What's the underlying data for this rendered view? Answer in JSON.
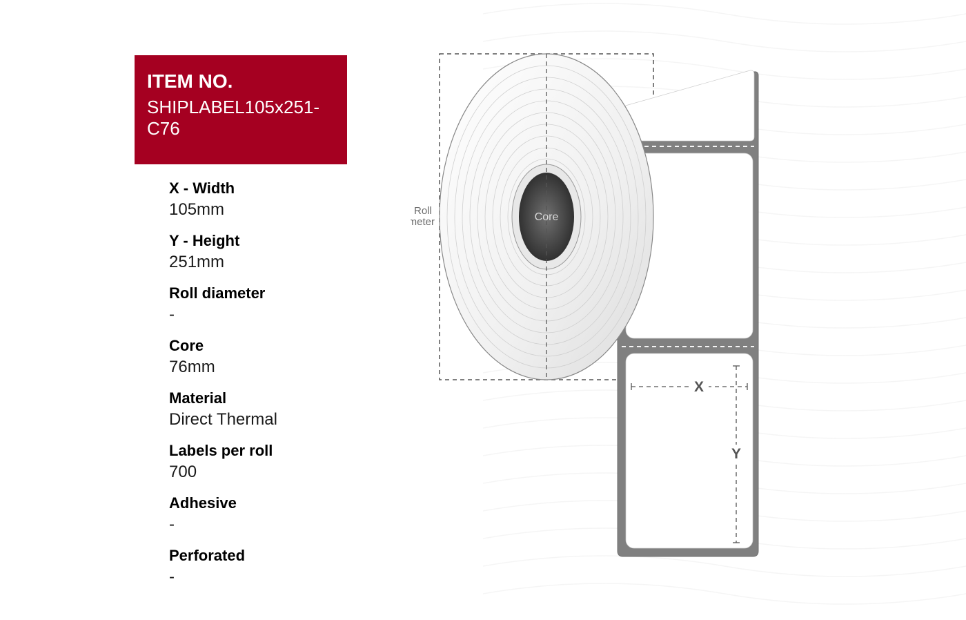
{
  "item_box": {
    "title": "ITEM NO.",
    "value": "SHIPLABEL105x251-C76",
    "bg_color": "#a50021",
    "text_color": "#ffffff"
  },
  "specs": [
    {
      "label": "X - Width",
      "value": "105mm"
    },
    {
      "label": "Y - Height",
      "value": "251mm"
    },
    {
      "label": "Roll diameter",
      "value": "-"
    },
    {
      "label": "Core",
      "value": "76mm"
    },
    {
      "label": "Material",
      "value": "Direct Thermal"
    },
    {
      "label": "Labels per roll",
      "value": "700"
    },
    {
      "label": "Adhesive",
      "value": "-"
    },
    {
      "label": "Perforated",
      "value": "-"
    }
  ],
  "diagram": {
    "roll_diameter_label": "Roll\ndiameter",
    "core_label": "Core",
    "x_label": "X",
    "y_label": "Y",
    "colors": {
      "roll_outline": "#808080",
      "roll_fill_light": "#fafafa",
      "roll_fill_shadow": "#d8d8d8",
      "core_dark": "#3a3a3a",
      "core_light": "#606060",
      "backing_grey": "#808080",
      "label_white": "#ffffff",
      "dash": "#555555",
      "label_text": "#6a6a6a"
    }
  },
  "background": {
    "wave_color": "#cccccc"
  }
}
